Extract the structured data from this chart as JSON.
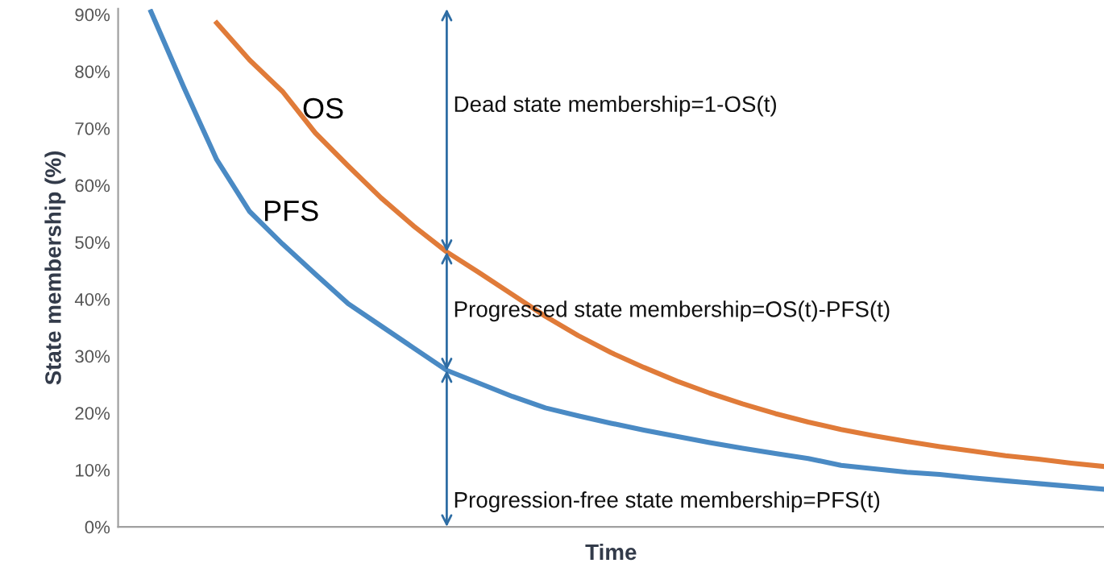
{
  "chart_data": {
    "type": "line",
    "xlabel": "Time",
    "ylabel": "State membership (%)",
    "categories": [
      null,
      null,
      null,
      null,
      null,
      null,
      null,
      null,
      null,
      null,
      null,
      null,
      null,
      null,
      null,
      null,
      null,
      null,
      null,
      null,
      null,
      null,
      null,
      null,
      null,
      null,
      null,
      null,
      null,
      null,
      null
    ],
    "ylim": [
      0,
      91
    ],
    "yticks": [
      {
        "value": 0,
        "label": "0%"
      },
      {
        "value": 10,
        "label": "10%"
      },
      {
        "value": 20,
        "label": "20%"
      },
      {
        "value": 30,
        "label": "30%"
      },
      {
        "value": 40,
        "label": "40%"
      },
      {
        "value": 50,
        "label": "50%"
      },
      {
        "value": 60,
        "label": "60%"
      },
      {
        "value": 70,
        "label": "70%"
      },
      {
        "value": 80,
        "label": "80%"
      },
      {
        "value": 90,
        "label": "90%"
      }
    ],
    "grid": false,
    "marker": "none",
    "line_style": "solid",
    "series": [
      {
        "name": "OS",
        "color": "#e07b39",
        "values": [
          null,
          null,
          null,
          88.5,
          82.0,
          76.5,
          69.2,
          63.4,
          57.8,
          52.8,
          48.3,
          44.6,
          40.8,
          37.0,
          33.6,
          30.6,
          28.0,
          25.6,
          23.5,
          21.6,
          19.9,
          18.4,
          17.1,
          16.0,
          15.0,
          14.1,
          13.3,
          12.5,
          11.9,
          11.2,
          10.6
        ]
      },
      {
        "name": "PFS",
        "color": "#4a8ac4",
        "values": [
          null,
          90.5,
          77.2,
          64.5,
          55.4,
          49.7,
          44.4,
          39.2,
          35.3,
          31.4,
          27.5,
          25.2,
          22.9,
          20.9,
          19.5,
          18.2,
          17.0,
          15.9,
          14.8,
          13.8,
          12.9,
          12.0,
          10.8,
          10.2,
          9.6,
          9.2,
          8.6,
          8.1,
          7.6,
          7.1,
          6.6
        ]
      }
    ],
    "annotations": [
      "Dead state membership=1-OS(t)",
      "Progressed state membership=OS(t)-PFS(t)",
      "Progression-free state membership=PFS(t)"
    ]
  }
}
